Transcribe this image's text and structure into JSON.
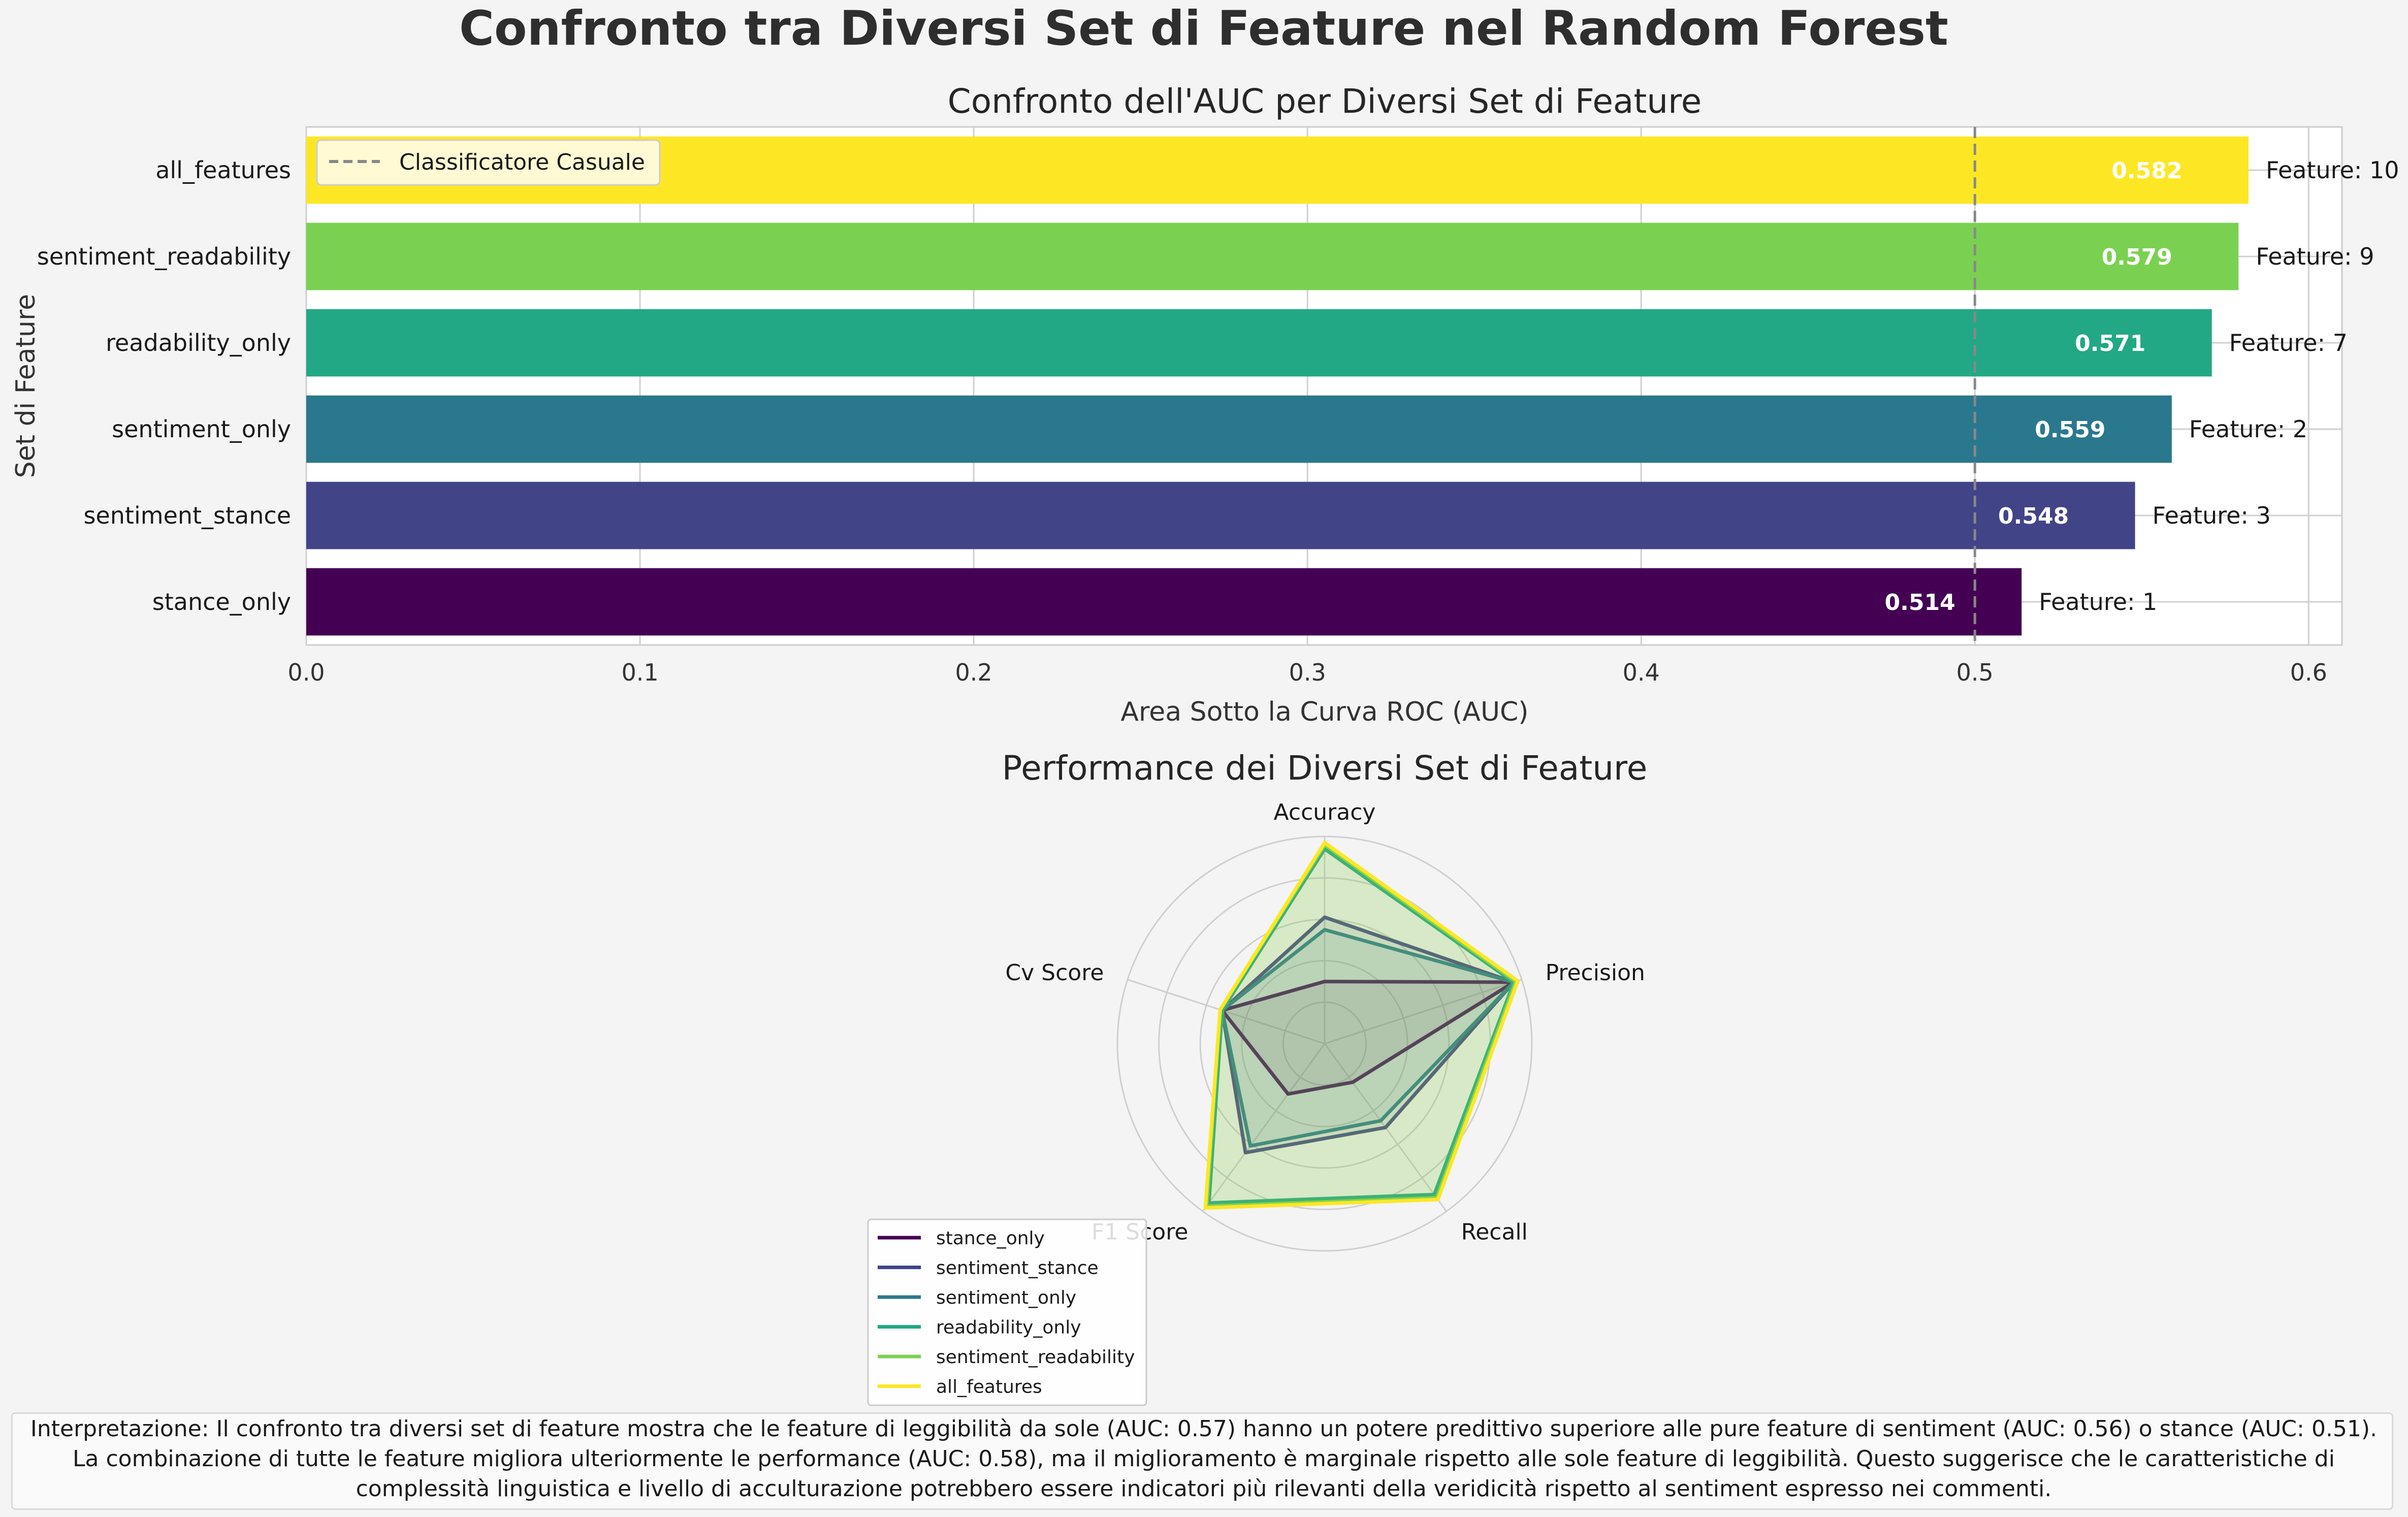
{
  "figure": {
    "suptitle": "Confronto tra Diversi Set di Feature nel Random Forest"
  },
  "chart_data": [
    {
      "type": "bar",
      "orientation": "horizontal",
      "title": "Confronto dell'AUC per Diversi Set di Feature",
      "xlabel": "Area Sotto la Curva ROC (AUC)",
      "ylabel": "Set di Feature",
      "xlim": [
        0.0,
        0.61
      ],
      "xticks": [
        "0.0",
        "0.1",
        "0.2",
        "0.3",
        "0.4",
        "0.5",
        "0.6"
      ],
      "grid": true,
      "categories": [
        "stance_only",
        "sentiment_stance",
        "sentiment_only",
        "readability_only",
        "sentiment_readability",
        "all_features"
      ],
      "values": [
        0.514,
        0.548,
        0.559,
        0.571,
        0.579,
        0.582
      ],
      "value_labels": [
        "0.514",
        "0.548",
        "0.559",
        "0.571",
        "0.579",
        "0.582"
      ],
      "feature_counts": [
        "Feature: 1",
        "Feature: 3",
        "Feature: 2",
        "Feature: 7",
        "Feature: 9",
        "Feature: 10"
      ],
      "colors": [
        "#440154",
        "#414487",
        "#2a788e",
        "#22a884",
        "#7ad151",
        "#fde725"
      ],
      "reference_line": {
        "x": 0.5,
        "label": "Classificatore Casuale",
        "style": "dashed",
        "color": "#888888"
      },
      "legend_position": "top-left"
    },
    {
      "type": "radar",
      "title": "Performance dei Diversi Set di Feature",
      "axes": [
        "Accuracy",
        "Precision",
        "Recall",
        "F1 Score",
        "Cv Score"
      ],
      "rlim": [
        0,
        1
      ],
      "grid": true,
      "legend_position": "bottom-left",
      "series": [
        {
          "name": "stance_only",
          "color": "#440154",
          "values": [
            0.3,
            0.96,
            0.23,
            0.3,
            0.52
          ]
        },
        {
          "name": "sentiment_stance",
          "color": "#414487",
          "values": [
            0.61,
            0.96,
            0.5,
            0.65,
            0.52
          ]
        },
        {
          "name": "sentiment_only",
          "color": "#2a788e",
          "values": [
            0.55,
            0.96,
            0.46,
            0.61,
            0.52
          ]
        },
        {
          "name": "readability_only",
          "color": "#22a884",
          "values": [
            0.94,
            0.96,
            0.9,
            0.95,
            0.52
          ]
        },
        {
          "name": "sentiment_readability",
          "color": "#7ad151",
          "values": [
            0.96,
            0.97,
            0.92,
            0.97,
            0.53
          ]
        },
        {
          "name": "all_features",
          "color": "#fde725",
          "values": [
            0.97,
            0.98,
            0.93,
            0.98,
            0.53
          ]
        }
      ]
    }
  ],
  "interpretation": "Interpretazione: Il confronto tra diversi set di feature mostra che le feature di leggibilità da sole (AUC: 0.57) hanno un potere predittivo superiore alle pure feature di sentiment (AUC: 0.56) o stance (AUC: 0.51). La combinazione di tutte le feature migliora ulteriormente le performance (AUC: 0.58), ma il miglioramento è marginale rispetto alle sole feature di leggibilità. Questo suggerisce che le caratteristiche di complessità linguistica e livello di acculturazione potrebbero essere indicatori più rilevanti della veridicità rispetto al sentiment espresso nei commenti."
}
